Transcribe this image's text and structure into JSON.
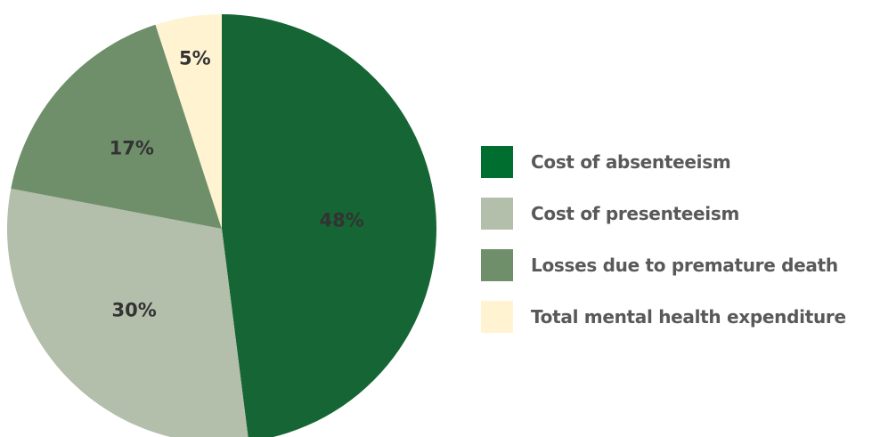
{
  "chart_data": {
    "type": "pie",
    "title": "",
    "legend_position": "right",
    "label_color": "#333333",
    "legend_text_color": "#595959",
    "slices": [
      {
        "label": "Cost of absenteeism",
        "value": 48,
        "display": "48%",
        "color": "#166534"
      },
      {
        "label": "Cost of presenteeism",
        "value": 30,
        "display": "30%",
        "color": "#b3beab"
      },
      {
        "label": "Losses due to premature death",
        "value": 17,
        "display": "17%",
        "color": "#6e8f6a"
      },
      {
        "label": "Total mental health expenditure",
        "value": 5,
        "display": "5%",
        "color": "#fff3d1"
      }
    ],
    "legend": [
      {
        "label": "Cost of absenteeism",
        "color": "#006e2e"
      },
      {
        "label": "Cost of presenteeism",
        "color": "#b3beab"
      },
      {
        "label": "Losses due to premature death",
        "color": "#6e8f6a"
      },
      {
        "label": "Total mental health expenditure",
        "color": "#fff3d1"
      }
    ]
  }
}
